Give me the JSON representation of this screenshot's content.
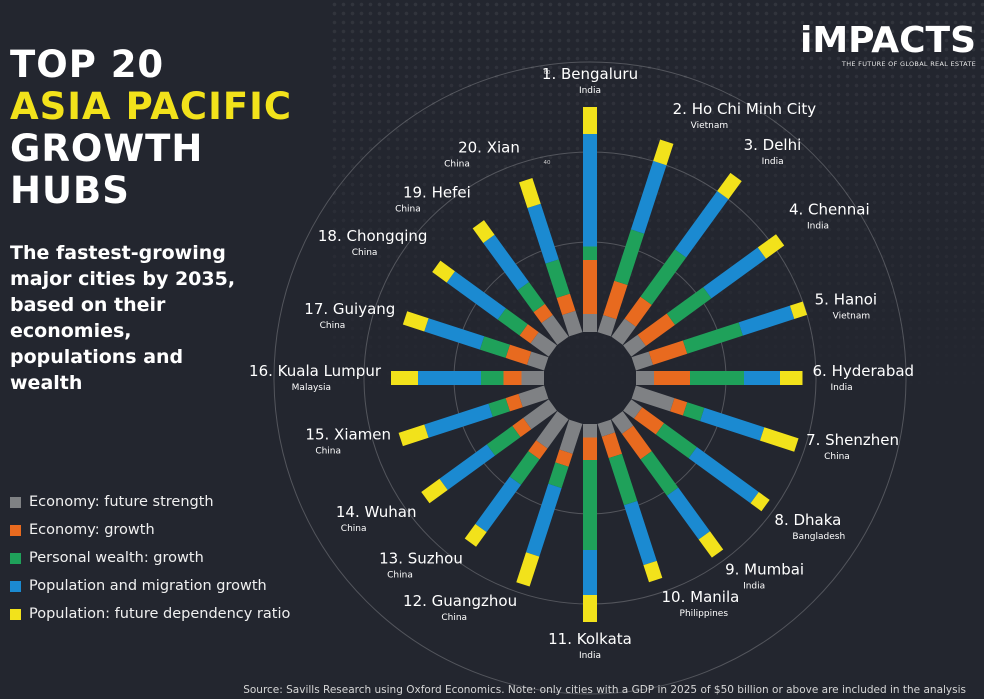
{
  "header": {
    "title_lines": [
      "TOP 20",
      "ASIA PACIFIC",
      "GROWTH",
      "HUBS"
    ],
    "subtitle": "The fastest-growing major cities by 2035, based on their economies, populations and wealth"
  },
  "brand": {
    "name": "iMPACTS",
    "tagline": "THE FUTURE OF GLOBAL REAL ESTATE"
  },
  "legend": [
    {
      "label": "Economy: future strength",
      "color": "#7f8184"
    },
    {
      "label": "Economy: growth",
      "color": "#e86a1f"
    },
    {
      "label": "Personal wealth: growth",
      "color": "#1fa15a"
    },
    {
      "label": "Population and migration growth",
      "color": "#1b8ad1"
    },
    {
      "label": "Population: future dependency ratio",
      "color": "#f2e21b"
    }
  ],
  "footer": {
    "source": "Source: Savills Research using Oxford Economics. Note: only cities with a GDP in 2025 of $50 billion or above are included in the analysis"
  },
  "chart_data": {
    "type": "bar",
    "layout": "radial-stacked",
    "rmax": 60,
    "ticks": [
      20,
      40,
      60
    ],
    "series": [
      {
        "name": "Economy: future strength",
        "color": "#7f8184"
      },
      {
        "name": "Economy: growth",
        "color": "#e86a1f"
      },
      {
        "name": "Personal wealth: growth",
        "color": "#1fa15a"
      },
      {
        "name": "Population and migration growth",
        "color": "#1b8ad1"
      },
      {
        "name": "Population: future dependency ratio",
        "color": "#f2e21b"
      }
    ],
    "cities": [
      {
        "label": "1. Bengaluru",
        "country": "India",
        "values": [
          4,
          12,
          3,
          25,
          6
        ]
      },
      {
        "label": "2. Ho Chi Minh City",
        "country": "Vietnam",
        "values": [
          4,
          8,
          12,
          16,
          5
        ]
      },
      {
        "label": "3. Delhi",
        "country": "India",
        "values": [
          5,
          6,
          13,
          16,
          5
        ]
      },
      {
        "label": "4. Chennai",
        "country": "India",
        "values": [
          4,
          8,
          10,
          15,
          5
        ]
      },
      {
        "label": "5. Hanoi",
        "country": "Vietnam",
        "values": [
          4,
          8,
          13,
          12,
          3
        ]
      },
      {
        "label": "6. Hyderabad",
        "country": "India",
        "values": [
          4,
          8,
          12,
          8,
          5
        ]
      },
      {
        "label": "7. Shenzhen",
        "country": "China",
        "values": [
          9,
          3,
          4,
          14,
          8
        ]
      },
      {
        "label": "8. Dhaka",
        "country": "Bangladesh",
        "values": [
          3,
          6,
          9,
          17,
          3
        ]
      },
      {
        "label": "9. Mumbai",
        "country": "India",
        "values": [
          4,
          7,
          10,
          12,
          5
        ]
      },
      {
        "label": "10. Manila",
        "country": "Philippines",
        "values": [
          3,
          5,
          11,
          14,
          4
        ]
      },
      {
        "label": "11. Kolkata",
        "country": "India",
        "values": [
          3,
          5,
          20,
          10,
          6
        ]
      },
      {
        "label": "12. Guangzhou",
        "country": "China",
        "values": [
          7,
          3,
          5,
          16,
          7
        ]
      },
      {
        "label": "13. Suzhou",
        "country": "China",
        "values": [
          8,
          3,
          7,
          13,
          4
        ]
      },
      {
        "label": "14. Wuhan",
        "country": "China",
        "values": [
          7,
          3,
          7,
          13,
          5
        ]
      },
      {
        "label": "15. Xiamen",
        "country": "China",
        "values": [
          6,
          3,
          4,
          15,
          6
        ]
      },
      {
        "label": "16. Kuala Lumpur",
        "country": "Malaysia",
        "values": [
          5,
          4,
          5,
          14,
          6
        ]
      },
      {
        "label": "17. Guiyang",
        "country": "China",
        "values": [
          4,
          5,
          6,
          13,
          5
        ]
      },
      {
        "label": "18. Chongqing",
        "country": "China",
        "values": [
          5,
          3,
          6,
          14,
          4
        ]
      },
      {
        "label": "19. Hefei",
        "country": "China",
        "values": [
          6,
          3,
          6,
          13,
          4
        ]
      },
      {
        "label": "20. Xian",
        "country": "China",
        "values": [
          5,
          4,
          8,
          13,
          6
        ]
      }
    ]
  }
}
